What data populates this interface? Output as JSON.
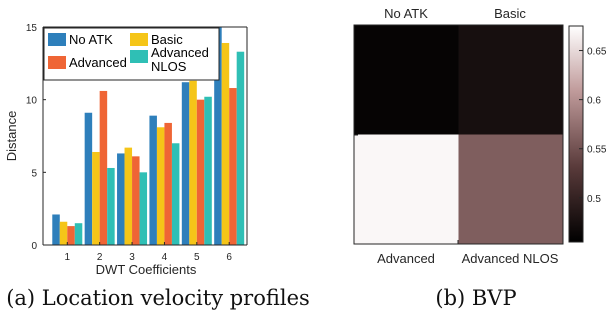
{
  "captions": {
    "left": "(a) Location velocity profiles",
    "right": "(b) BVP"
  },
  "chart_data": [
    {
      "type": "bar",
      "xlabel": "DWT Coefficients",
      "ylabel": "Distance",
      "categories": [
        "1",
        "2",
        "3",
        "4",
        "5",
        "6"
      ],
      "ylim": [
        0,
        15
      ],
      "yticks": [
        "0",
        "5",
        "10",
        "15"
      ],
      "grid": false,
      "legend_position": "top-left",
      "series": [
        {
          "name": "No ATK",
          "color": "#2e7fbb",
          "values": [
            2.1,
            9.1,
            6.3,
            8.9,
            11.2,
            15.0
          ]
        },
        {
          "name": "Basic",
          "color": "#f5c518",
          "values": [
            1.6,
            6.4,
            6.7,
            8.1,
            11.3,
            13.9
          ]
        },
        {
          "name": "Advanced",
          "color": "#ef6535",
          "values": [
            1.3,
            10.6,
            6.1,
            8.4,
            10.0,
            10.8
          ]
        },
        {
          "name": "Advanced\nNLOS",
          "color": "#2fbfb5",
          "values": [
            1.5,
            5.3,
            5.0,
            7.0,
            10.2,
            13.3
          ]
        }
      ]
    },
    {
      "type": "heatmap",
      "top_labels": [
        "No ATK",
        "Basic"
      ],
      "bottom_labels": [
        "Advanced",
        "Advanced NLOS"
      ],
      "cells": [
        [
          0.46,
          0.475
        ],
        [
          0.67,
          0.56
        ]
      ],
      "colorbar": {
        "min": 0.455,
        "max": 0.675,
        "ticks": [
          "0.5",
          "0.55",
          "0.6",
          "0.65"
        ],
        "tick_values": [
          0.5,
          0.55,
          0.6,
          0.65
        ]
      }
    }
  ]
}
